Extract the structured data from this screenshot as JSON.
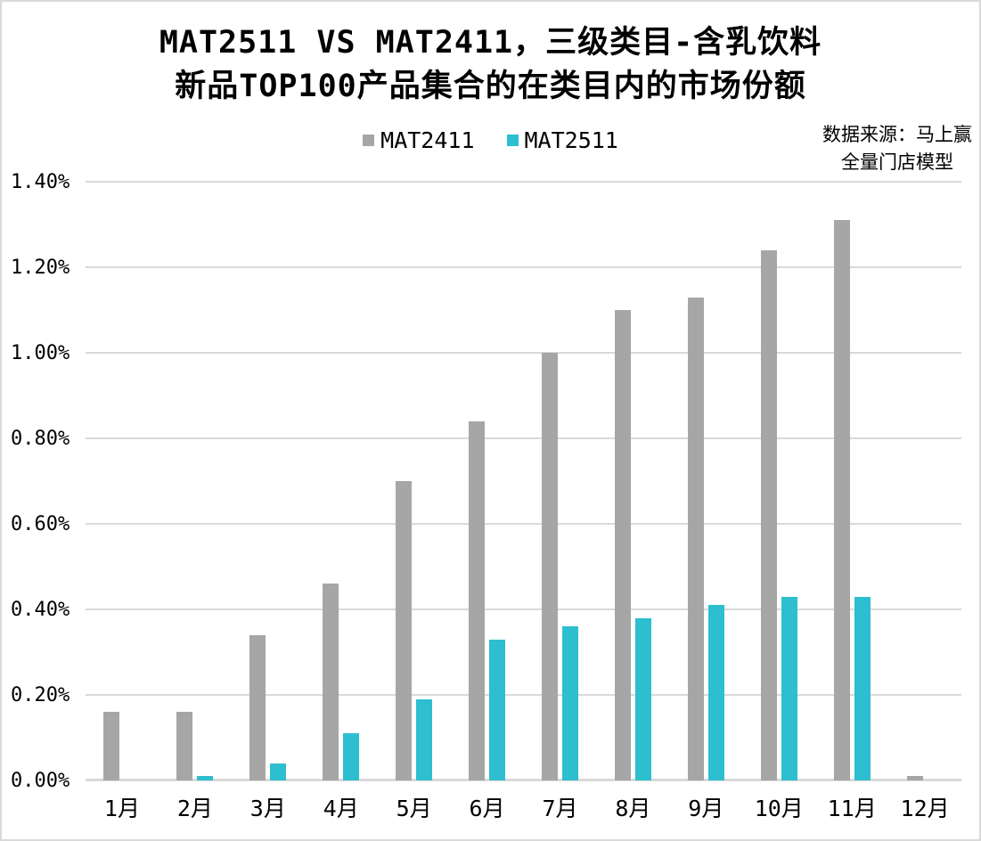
{
  "title": {
    "line1": "MAT2511 VS MAT2411，三级类目-含乳饮料",
    "line2": "新品TOP100产品集合的在类目内的市场份额"
  },
  "legend": [
    {
      "label": "MAT2411",
      "color": "#a6a6a6"
    },
    {
      "label": "MAT2511",
      "color": "#2dbed0"
    }
  ],
  "source_note": {
    "line1": "数据来源：马上赢",
    "line2": "全量门店模型"
  },
  "chart_data": {
    "type": "bar",
    "title": "MAT2511 VS MAT2411，三级类目-含乳饮料 新品TOP100产品集合的在类目内的市场份额",
    "categories": [
      "1月",
      "2月",
      "3月",
      "4月",
      "5月",
      "6月",
      "7月",
      "8月",
      "9月",
      "10月",
      "11月",
      "12月"
    ],
    "series": [
      {
        "name": "MAT2411",
        "color": "#a6a6a6",
        "values": [
          0.16,
          0.16,
          0.34,
          0.46,
          0.7,
          0.84,
          1.0,
          1.1,
          1.13,
          1.24,
          1.31,
          0.01
        ]
      },
      {
        "name": "MAT2511",
        "color": "#2dbed0",
        "values": [
          0,
          0.01,
          0.04,
          0.11,
          0.19,
          0.33,
          0.36,
          0.38,
          0.41,
          0.43,
          0.43,
          0
        ]
      }
    ],
    "xlabel": "",
    "ylabel": "",
    "unit": "%",
    "ylim": [
      0,
      1.4
    ],
    "y_tick_values": [
      0,
      0.2,
      0.4,
      0.6,
      0.8,
      1.0,
      1.2,
      1.4
    ],
    "y_ticks": [
      "0.00%",
      "0.20%",
      "0.40%",
      "0.60%",
      "0.80%",
      "1.00%",
      "1.20%",
      "1.40%"
    ],
    "grid": true,
    "legend_position": "top-center"
  },
  "colors": {
    "gridline": "#d9d9d9",
    "frame_border": "#d9d9d9",
    "background": "#ffffff",
    "text": "#000000"
  }
}
